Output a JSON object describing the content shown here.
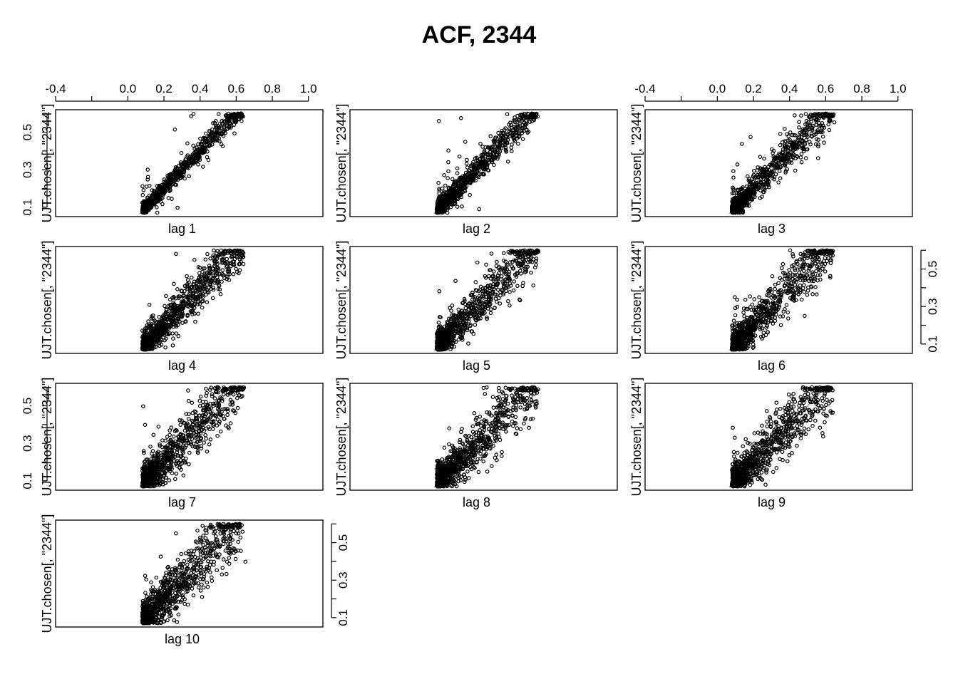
{
  "chart_data": {
    "type": "scatter",
    "title": "ACF, 2344",
    "ylabel": "UJT.chosen[, \"2344\"]",
    "xlim": [
      -0.4,
      1.08
    ],
    "ylim": [
      0.05,
      0.62
    ],
    "x_ticks": [
      -0.4,
      -0.2,
      0.0,
      0.2,
      0.4,
      0.6,
      0.8,
      1.0
    ],
    "x_tick_labels": [
      "-0.4",
      "",
      "0.0",
      "0.2",
      "0.4",
      "0.6",
      "0.8",
      "1.0"
    ],
    "y_ticks": [
      0.1,
      0.2,
      0.3,
      0.4,
      0.5,
      0.6
    ],
    "y_tick_labels": [
      "0.1",
      "",
      "0.3",
      "",
      "0.5",
      ""
    ],
    "reference_line": {
      "style": "dashed",
      "color": "#aaaaaa",
      "slope": 1,
      "intercept": 0
    },
    "point_color": "#000000",
    "panels": [
      {
        "label": "lag 1",
        "spread": 0.022
      },
      {
        "label": "lag 2",
        "spread": 0.032
      },
      {
        "label": "lag 3",
        "spread": 0.04
      },
      {
        "label": "lag 4",
        "spread": 0.046
      },
      {
        "label": "lag 5",
        "spread": 0.05
      },
      {
        "label": "lag 6",
        "spread": 0.055
      },
      {
        "label": "lag 7",
        "spread": 0.058
      },
      {
        "label": "lag 8",
        "spread": 0.061
      },
      {
        "label": "lag 9",
        "spread": 0.063
      },
      {
        "label": "lag 10",
        "spread": 0.066
      }
    ]
  }
}
